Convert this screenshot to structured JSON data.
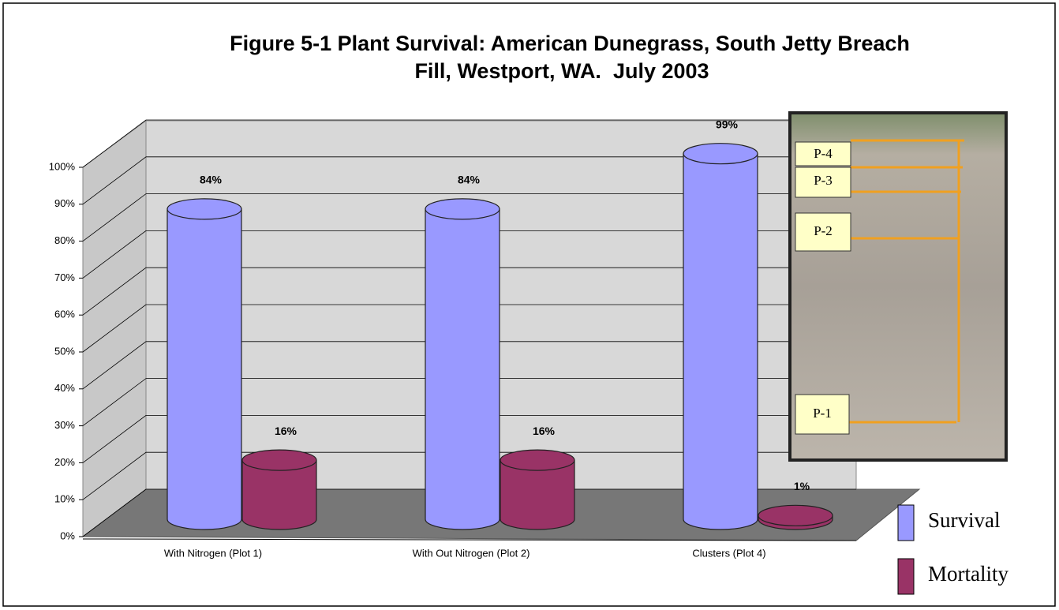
{
  "chart_data": {
    "type": "cylinder-bar",
    "title": [
      "Figure 5-1 Plant Survival: American Dunegrass, South Jetty Breach",
      "Fill, Westport, WA.  July 2003"
    ],
    "categories": [
      "With Nitrogen (Plot 1)",
      "With Out Nitrogen (Plot 2)",
      "Clusters (Plot 4)"
    ],
    "series": [
      {
        "name": "Survival",
        "color": "#9999ff",
        "values": [
          84,
          84,
          99
        ],
        "value_labels": [
          "84%",
          "84%",
          "99%"
        ]
      },
      {
        "name": "Mortality",
        "color": "#993366",
        "values": [
          16,
          16,
          1
        ],
        "value_labels": [
          "16%",
          "16%",
          "1%"
        ]
      }
    ],
    "ylim": [
      0,
      100
    ],
    "yticks": [
      {
        "value": 0,
        "label": "0%"
      },
      {
        "value": 10,
        "label": "10%"
      },
      {
        "value": 20,
        "label": "20%"
      },
      {
        "value": 30,
        "label": "30%"
      },
      {
        "value": 40,
        "label": "40%"
      },
      {
        "value": 50,
        "label": "50%"
      },
      {
        "value": 60,
        "label": "60%"
      },
      {
        "value": 70,
        "label": "70%"
      },
      {
        "value": 80,
        "label": "80%"
      },
      {
        "value": 90,
        "label": "90%"
      },
      {
        "value": 100,
        "label": "100%"
      }
    ],
    "grid": true,
    "annotations": [
      "P-4",
      "P-3",
      "P-2",
      "P-1"
    ]
  }
}
